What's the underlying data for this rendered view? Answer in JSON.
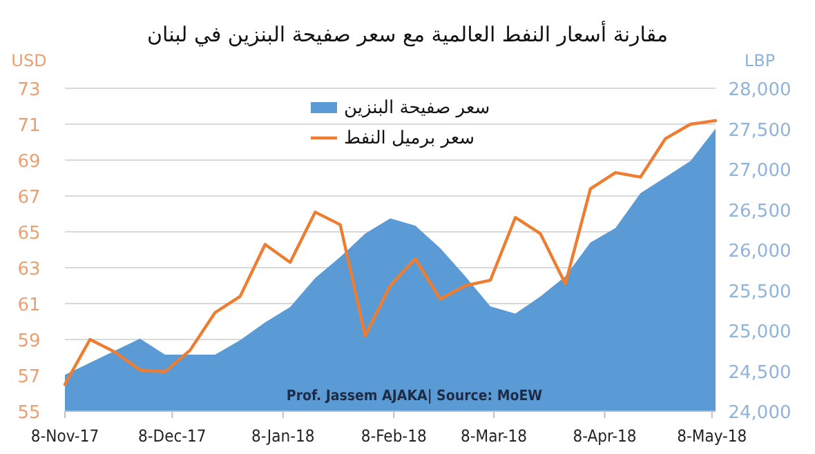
{
  "chart_data": {
    "type": "area",
    "title": "مقارنة أسعار النفط العالمية مع سعر صفيحة البنزين في لبنان",
    "ylabel": "USD",
    "y2label": "LBP",
    "x": [
      "2017-11-08",
      "2017-11-15",
      "2017-11-22",
      "2017-11-29",
      "2017-12-06",
      "2017-12-13",
      "2017-12-20",
      "2017-12-27",
      "2018-01-03",
      "2018-01-10",
      "2018-01-17",
      "2018-01-24",
      "2018-01-31",
      "2018-02-07",
      "2018-02-14",
      "2018-02-21",
      "2018-02-28",
      "2018-03-07",
      "2018-03-14",
      "2018-03-21",
      "2018-03-28",
      "2018-04-04",
      "2018-04-11",
      "2018-04-18",
      "2018-04-25",
      "2018-05-02",
      "2018-05-09"
    ],
    "series": [
      {
        "name": "سعر صفيحة البنزين",
        "axis": "y2",
        "color": "#5b9bd5",
        "values": [
          24450,
          24600,
          24750,
          24900,
          24700,
          24700,
          24700,
          24880,
          25100,
          25290,
          25650,
          25910,
          26200,
          26390,
          26300,
          26020,
          25670,
          25300,
          25210,
          25420,
          25670,
          26090,
          26270,
          26700,
          26900,
          27100,
          27500
        ]
      },
      {
        "name": "سعر برميل النفط",
        "type": "line",
        "color": "#ed7d31",
        "values": [
          56.5,
          59.0,
          58.3,
          57.3,
          57.2,
          58.4,
          60.5,
          61.4,
          64.3,
          63.3,
          66.1,
          65.4,
          59.2,
          62.0,
          63.5,
          61.25,
          62.0,
          62.3,
          65.8,
          64.9,
          62.1,
          67.4,
          68.3,
          68.05,
          70.2,
          71.0,
          71.2
        ]
      }
    ],
    "xlim": [
      "2017-11-08",
      "2018-05-09"
    ],
    "xticks": [
      {
        "value": "2017-11-08",
        "label": "8-Nov-17"
      },
      {
        "value": "2017-12-08",
        "label": "8-Dec-17"
      },
      {
        "value": "2018-01-08",
        "label": "8-Jan-18"
      },
      {
        "value": "2018-02-08",
        "label": "8-Feb-18"
      },
      {
        "value": "2018-03-08",
        "label": "8-Mar-18"
      },
      {
        "value": "2018-04-08",
        "label": "8-Apr-18"
      },
      {
        "value": "2018-05-08",
        "label": "8-May-18"
      }
    ],
    "ylim": [
      55,
      73
    ],
    "yticks": [
      55,
      57,
      59,
      61,
      63,
      65,
      67,
      69,
      71,
      73
    ],
    "y2lim": [
      24000,
      28000
    ],
    "y2ticks": [
      {
        "value": 24000,
        "label": "24,000"
      },
      {
        "value": 24500,
        "label": "24,500"
      },
      {
        "value": 25000,
        "label": "25,000"
      },
      {
        "value": 25500,
        "label": "25,500"
      },
      {
        "value": 26000,
        "label": "26,000"
      },
      {
        "value": 26500,
        "label": "26,500"
      },
      {
        "value": 27000,
        "label": "27,000"
      },
      {
        "value": 27500,
        "label": "27,500"
      },
      {
        "value": 28000,
        "label": "28,000"
      }
    ],
    "grid": "y",
    "legend": "top",
    "annotations": [
      "Prof. Jassem AJAKA| Source: MoEW"
    ]
  }
}
